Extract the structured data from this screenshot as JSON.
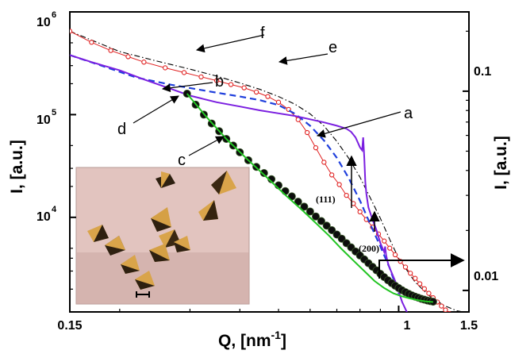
{
  "chart_data": {
    "type": "line",
    "xlabel_main": "Q, [nm",
    "xlabel_exp": "-1",
    "xlabel_close": "]",
    "ylabel_left": "I, [a.u.]",
    "ylabel_right": "I, [a.u.]",
    "x_scale": "log",
    "y_scale": "log",
    "xlim": [
      0.15,
      1.5
    ],
    "ylim_left": [
      1200,
      1000000
    ],
    "ylim_right": [
      0.0078,
      0.25
    ],
    "x_ticks": [
      {
        "value": 0.15,
        "label": "0.15"
      },
      {
        "value": 1.0,
        "label": "1"
      },
      {
        "value": 1.5,
        "label": "1.5"
      }
    ],
    "y_ticks_left": [
      {
        "value": 1000000,
        "mantissa": "10",
        "exp": "6"
      },
      {
        "value": 100000,
        "mantissa": "10",
        "exp": "5"
      },
      {
        "value": 10000,
        "mantissa": "10",
        "exp": "4"
      }
    ],
    "y_ticks_right": [
      {
        "value": 0.1,
        "label": "0.1"
      },
      {
        "value": 0.01,
        "label": "0.01"
      }
    ],
    "colors": {
      "a": "#7b1fe0",
      "b": "#1f3fdc",
      "c": "#22c422",
      "d": "#000000",
      "e": "#e02020",
      "f": "#000000"
    },
    "series": [
      {
        "id": "a",
        "style": "solid",
        "x": [
          0.15,
          0.17,
          0.2,
          0.23,
          0.27,
          0.3,
          0.35,
          0.4,
          0.45,
          0.5,
          0.55,
          0.6,
          0.65,
          0.7,
          0.74,
          0.76,
          0.78,
          0.8,
          0.81,
          0.815,
          0.82,
          0.825,
          0.83,
          0.84,
          0.86,
          0.88,
          0.9,
          0.92,
          0.925,
          0.93,
          0.94,
          0.95,
          0.98,
          1.0,
          1.02,
          1.05
        ],
        "y": [
          380000,
          325000,
          270000,
          220000,
          177000,
          153000,
          132000,
          120000,
          110000,
          103000,
          97000,
          90000,
          84000,
          78000,
          73000,
          68000,
          60000,
          48000,
          45000,
          60000,
          38000,
          22000,
          17000,
          12500,
          9500,
          7500,
          5600,
          4600,
          5200,
          4300,
          3600,
          3200,
          2400,
          1900,
          1500,
          1180
        ]
      },
      {
        "id": "b",
        "style": "dashed",
        "x": [
          0.15,
          0.18,
          0.22,
          0.27,
          0.33,
          0.4,
          0.45,
          0.5,
          0.55,
          0.6,
          0.65,
          0.7,
          0.75,
          0.8,
          0.85,
          0.9,
          0.95,
          1.0
        ],
        "y": [
          380000,
          300000,
          230000,
          195000,
          170000,
          150000,
          138000,
          124000,
          102000,
          78000,
          56000,
          38000,
          24000,
          14500,
          8500,
          5200,
          3200,
          1800
        ]
      },
      {
        "id": "c",
        "style": "solid",
        "x": [
          0.295,
          0.33,
          0.37,
          0.42,
          0.47,
          0.52,
          0.57,
          0.62,
          0.67,
          0.72,
          0.77,
          0.82,
          0.87,
          0.92,
          0.97,
          1.02,
          1.07,
          1.12,
          1.17,
          1.22
        ],
        "y": [
          160000,
          95000,
          58000,
          36000,
          24000,
          16500,
          12000,
          8800,
          6600,
          4900,
          3800,
          3000,
          2400,
          2050,
          1820,
          1700,
          1620,
          1560,
          1520,
          1500
        ]
      },
      {
        "id": "d",
        "style": "markers",
        "x": [
          0.295,
          0.31,
          0.325,
          0.34,
          0.355,
          0.37,
          0.385,
          0.4,
          0.42,
          0.44,
          0.46,
          0.48,
          0.5,
          0.52,
          0.54,
          0.56,
          0.58,
          0.6,
          0.62,
          0.64,
          0.66,
          0.68,
          0.7,
          0.72,
          0.74,
          0.76,
          0.78,
          0.8,
          0.82,
          0.84,
          0.86,
          0.88,
          0.9,
          0.92,
          0.94,
          0.96,
          0.98,
          1.0,
          1.02,
          1.04,
          1.06,
          1.08,
          1.1,
          1.12,
          1.14,
          1.16,
          1.18,
          1.2,
          1.22
        ],
        "y": [
          160000,
          125000,
          100000,
          82000,
          69000,
          58000,
          50000,
          43000,
          36000,
          31000,
          27000,
          23500,
          20500,
          18000,
          16000,
          14200,
          12700,
          11400,
          10200,
          9200,
          8300,
          7500,
          6800,
          6200,
          5600,
          5100,
          4650,
          4250,
          3900,
          3580,
          3300,
          3050,
          2820,
          2620,
          2440,
          2290,
          2160,
          2050,
          1950,
          1870,
          1800,
          1740,
          1690,
          1650,
          1610,
          1580,
          1550,
          1530,
          1510
        ]
      },
      {
        "id": "e",
        "style": "open-markers",
        "x": [
          0.15,
          0.17,
          0.19,
          0.21,
          0.23,
          0.26,
          0.29,
          0.32,
          0.35,
          0.38,
          0.41,
          0.44,
          0.47,
          0.5,
          0.53,
          0.56,
          0.59,
          0.62,
          0.65,
          0.68,
          0.71,
          0.74,
          0.77,
          0.8,
          0.83,
          0.86,
          0.89,
          0.92,
          0.95,
          0.98,
          1.01,
          1.04,
          1.07,
          1.1,
          1.13,
          1.16,
          1.19,
          1.22,
          1.25,
          1.28,
          1.31,
          1.34,
          1.37,
          1.4,
          1.43,
          1.46,
          1.5
        ],
        "y": [
          0.2,
          0.176,
          0.16,
          0.149,
          0.14,
          0.131,
          0.124,
          0.118,
          0.113,
          0.108,
          0.104,
          0.099,
          0.094,
          0.088,
          0.081,
          0.072,
          0.062,
          0.052,
          0.044,
          0.038,
          0.034,
          0.03,
          0.0273,
          0.0248,
          0.0227,
          0.0208,
          0.0192,
          0.0177,
          0.0163,
          0.0151,
          0.014,
          0.0131,
          0.0122,
          0.0115,
          0.0108,
          0.0102,
          0.00967,
          0.00919,
          0.00875,
          0.00835,
          0.00798,
          0.00765,
          0.00734,
          0.00705,
          0.00678,
          0.00653,
          0.00625
        ]
      },
      {
        "id": "f",
        "style": "dash-dot",
        "x": [
          0.15,
          0.2,
          0.25,
          0.3,
          0.35,
          0.4,
          0.45,
          0.5,
          0.55,
          0.6,
          0.65,
          0.7,
          0.75,
          0.8,
          0.85,
          0.9,
          0.95,
          1.0,
          1.1,
          1.2,
          1.3,
          1.4,
          1.5
        ],
        "y": [
          0.2,
          0.158,
          0.141,
          0.129,
          0.119,
          0.11,
          0.102,
          0.094,
          0.086,
          0.077,
          0.067,
          0.056,
          0.046,
          0.037,
          0.029,
          0.023,
          0.018,
          0.0145,
          0.011,
          0.0093,
          0.0084,
          0.0079,
          0.0077
        ]
      }
    ],
    "annotations": {
      "labels": [
        "a",
        "b",
        "c",
        "d",
        "e",
        "f"
      ],
      "peak_111": "(111)",
      "peak_200": "(200)"
    },
    "inset": {
      "type": "photo",
      "content": "octahedral crystals",
      "colors": {
        "bg": "#e0c0bc",
        "crystal_light": "#d9a44a",
        "crystal_dark": "#2e2010"
      }
    }
  }
}
